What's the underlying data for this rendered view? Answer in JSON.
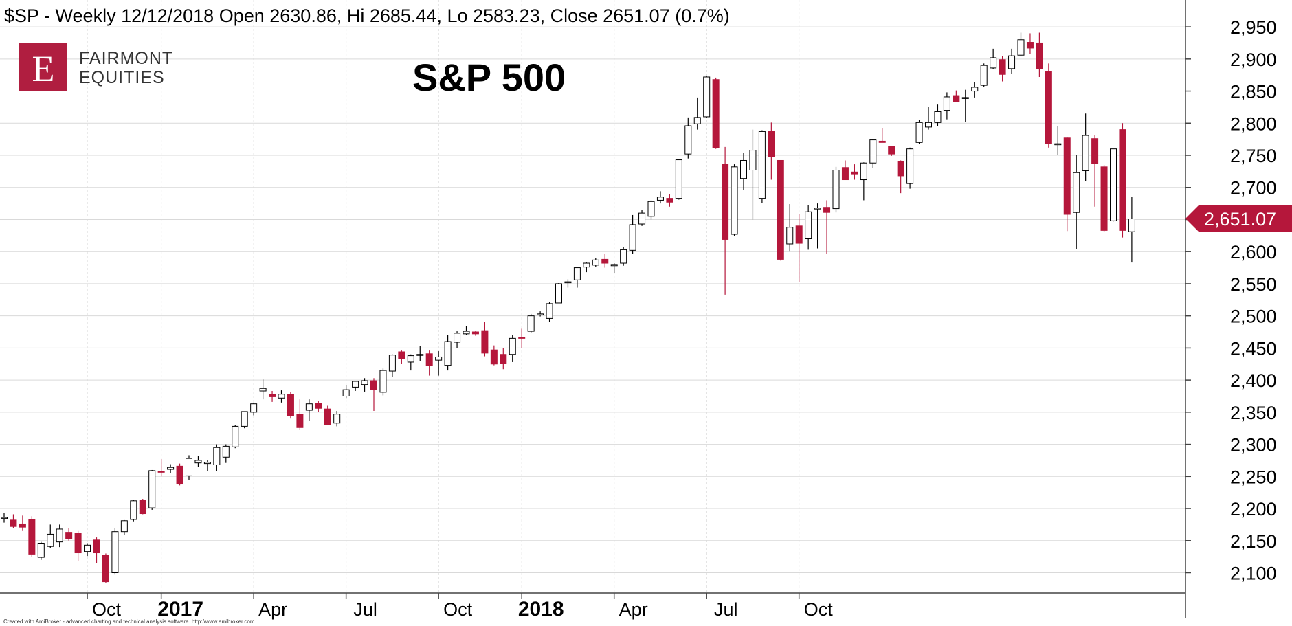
{
  "header": {
    "text": "$SP - Weekly 12/12/2018 Open 2630.86, Hi 2685.44, Lo 2583.23, Close 2651.07 (0.7%)"
  },
  "logo": {
    "letter": "E",
    "line1": "FAIRMONT",
    "line2": "EQUITIES"
  },
  "footer": {
    "text": "Created with AmiBroker - advanced charting and technical analysis software. http://www.amibroker.com"
  },
  "colors": {
    "bear": "#b5173b",
    "bull_fill": "#ffffff",
    "bull_stroke": "#000000",
    "grid": "#d9d9d9",
    "logo_bg": "#b01e40"
  },
  "last_price_tag": "2,651.07",
  "chart_data": {
    "type": "candlestick",
    "title": "S&P 500",
    "xlabel": "",
    "ylabel": "",
    "ylim": [
      2070,
      2970
    ],
    "yticks": [
      2100,
      2150,
      2200,
      2250,
      2300,
      2350,
      2400,
      2450,
      2500,
      2550,
      2600,
      2650,
      2700,
      2750,
      2800,
      2850,
      2900,
      2950
    ],
    "ytick_labels": [
      "2,100",
      "2,150",
      "2,200",
      "2,250",
      "2,300",
      "2,350",
      "2,400",
      "2,450",
      "2,500",
      "2,550",
      "2,600",
      "2,650",
      "2,700",
      "2,750",
      "2,800",
      "2,850",
      "2,900",
      "2,950"
    ],
    "xticks": [
      {
        "index": 9,
        "label": "Oct",
        "bold": false
      },
      {
        "index": 17,
        "label": "2017",
        "bold": true
      },
      {
        "index": 27,
        "label": "Apr",
        "bold": false
      },
      {
        "index": 37,
        "label": "Jul",
        "bold": false
      },
      {
        "index": 47,
        "label": "Oct",
        "bold": false
      },
      {
        "index": 56,
        "label": "2018",
        "bold": true
      },
      {
        "index": 66,
        "label": "Apr",
        "bold": false
      },
      {
        "index": 76,
        "label": "Jul",
        "bold": false
      },
      {
        "index": 86,
        "label": "Oct",
        "bold": false
      }
    ],
    "grid": true,
    "candles": [
      {
        "o": 2186,
        "h": 2193,
        "l": 2178,
        "c": 2186
      },
      {
        "o": 2182,
        "h": 2191,
        "l": 2170,
        "c": 2172
      },
      {
        "o": 2176,
        "h": 2189,
        "l": 2165,
        "c": 2171
      },
      {
        "o": 2183,
        "h": 2188,
        "l": 2125,
        "c": 2129
      },
      {
        "o": 2124,
        "h": 2148,
        "l": 2120,
        "c": 2146
      },
      {
        "o": 2141,
        "h": 2175,
        "l": 2138,
        "c": 2160
      },
      {
        "o": 2148,
        "h": 2175,
        "l": 2140,
        "c": 2168
      },
      {
        "o": 2163,
        "h": 2169,
        "l": 2150,
        "c": 2153
      },
      {
        "o": 2161,
        "h": 2165,
        "l": 2118,
        "c": 2131
      },
      {
        "o": 2133,
        "h": 2146,
        "l": 2126,
        "c": 2143
      },
      {
        "o": 2151,
        "h": 2155,
        "l": 2115,
        "c": 2131
      },
      {
        "o": 2127,
        "h": 2130,
        "l": 2084,
        "c": 2086
      },
      {
        "o": 2100,
        "h": 2170,
        "l": 2097,
        "c": 2164
      },
      {
        "o": 2164,
        "h": 2182,
        "l": 2159,
        "c": 2181
      },
      {
        "o": 2183,
        "h": 2213,
        "l": 2180,
        "c": 2212
      },
      {
        "o": 2213,
        "h": 2215,
        "l": 2191,
        "c": 2192
      },
      {
        "o": 2201,
        "h": 2260,
        "l": 2198,
        "c": 2259
      },
      {
        "o": 2258,
        "h": 2277,
        "l": 2250,
        "c": 2257
      },
      {
        "o": 2261,
        "h": 2269,
        "l": 2255,
        "c": 2264
      },
      {
        "o": 2266,
        "h": 2270,
        "l": 2236,
        "c": 2238
      },
      {
        "o": 2251,
        "h": 2283,
        "l": 2245,
        "c": 2278
      },
      {
        "o": 2271,
        "h": 2282,
        "l": 2265,
        "c": 2275
      },
      {
        "o": 2270,
        "h": 2276,
        "l": 2258,
        "c": 2272
      },
      {
        "o": 2268,
        "h": 2300,
        "l": 2258,
        "c": 2295
      },
      {
        "o": 2280,
        "h": 2300,
        "l": 2271,
        "c": 2297
      },
      {
        "o": 2296,
        "h": 2330,
        "l": 2294,
        "c": 2328
      },
      {
        "o": 2328,
        "h": 2351,
        "l": 2325,
        "c": 2351
      },
      {
        "o": 2350,
        "h": 2365,
        "l": 2345,
        "c": 2363
      },
      {
        "o": 2383,
        "h": 2401,
        "l": 2370,
        "c": 2387
      },
      {
        "o": 2378,
        "h": 2383,
        "l": 2366,
        "c": 2374
      },
      {
        "o": 2372,
        "h": 2384,
        "l": 2365,
        "c": 2378
      },
      {
        "o": 2378,
        "h": 2381,
        "l": 2340,
        "c": 2344
      },
      {
        "o": 2347,
        "h": 2370,
        "l": 2322,
        "c": 2326
      },
      {
        "o": 2353,
        "h": 2370,
        "l": 2336,
        "c": 2363
      },
      {
        "o": 2364,
        "h": 2367,
        "l": 2350,
        "c": 2356
      },
      {
        "o": 2355,
        "h": 2360,
        "l": 2330,
        "c": 2331
      },
      {
        "o": 2333,
        "h": 2352,
        "l": 2328,
        "c": 2347
      },
      {
        "o": 2375,
        "h": 2392,
        "l": 2372,
        "c": 2385
      },
      {
        "o": 2389,
        "h": 2399,
        "l": 2383,
        "c": 2398
      },
      {
        "o": 2393,
        "h": 2403,
        "l": 2382,
        "c": 2399
      },
      {
        "o": 2399,
        "h": 2403,
        "l": 2352,
        "c": 2385
      },
      {
        "o": 2381,
        "h": 2418,
        "l": 2376,
        "c": 2415
      },
      {
        "o": 2414,
        "h": 2440,
        "l": 2405,
        "c": 2439
      },
      {
        "o": 2444,
        "h": 2446,
        "l": 2425,
        "c": 2433
      },
      {
        "o": 2428,
        "h": 2440,
        "l": 2415,
        "c": 2438
      },
      {
        "o": 2439,
        "h": 2453,
        "l": 2430,
        "c": 2440
      },
      {
        "o": 2441,
        "h": 2446,
        "l": 2407,
        "c": 2423
      },
      {
        "o": 2431,
        "h": 2445,
        "l": 2407,
        "c": 2436
      },
      {
        "o": 2423,
        "h": 2470,
        "l": 2415,
        "c": 2460
      },
      {
        "o": 2459,
        "h": 2476,
        "l": 2450,
        "c": 2473
      },
      {
        "o": 2472,
        "h": 2484,
        "l": 2470,
        "c": 2476
      },
      {
        "o": 2475,
        "h": 2477,
        "l": 2469,
        "c": 2472
      },
      {
        "o": 2477,
        "h": 2491,
        "l": 2437,
        "c": 2442
      },
      {
        "o": 2447,
        "h": 2454,
        "l": 2423,
        "c": 2425
      },
      {
        "o": 2440,
        "h": 2450,
        "l": 2417,
        "c": 2426
      },
      {
        "o": 2440,
        "h": 2470,
        "l": 2428,
        "c": 2465
      },
      {
        "o": 2467,
        "h": 2480,
        "l": 2450,
        "c": 2465
      },
      {
        "o": 2476,
        "h": 2503,
        "l": 2474,
        "c": 2500
      },
      {
        "o": 2502,
        "h": 2507,
        "l": 2499,
        "c": 2503
      },
      {
        "o": 2496,
        "h": 2521,
        "l": 2490,
        "c": 2519
      },
      {
        "o": 2520,
        "h": 2551,
        "l": 2520,
        "c": 2550
      },
      {
        "o": 2552,
        "h": 2557,
        "l": 2544,
        "c": 2553
      },
      {
        "o": 2556,
        "h": 2568,
        "l": 2544,
        "c": 2575
      },
      {
        "o": 2576,
        "h": 2583,
        "l": 2568,
        "c": 2582
      },
      {
        "o": 2579,
        "h": 2590,
        "l": 2576,
        "c": 2587
      },
      {
        "o": 2588,
        "h": 2597,
        "l": 2575,
        "c": 2582
      },
      {
        "o": 2578,
        "h": 2582,
        "l": 2566,
        "c": 2580
      },
      {
        "o": 2582,
        "h": 2607,
        "l": 2578,
        "c": 2603
      },
      {
        "o": 2602,
        "h": 2657,
        "l": 2597,
        "c": 2642
      },
      {
        "o": 2643,
        "h": 2665,
        "l": 2640,
        "c": 2660
      },
      {
        "o": 2655,
        "h": 2680,
        "l": 2650,
        "c": 2678
      },
      {
        "o": 2680,
        "h": 2694,
        "l": 2675,
        "c": 2685
      },
      {
        "o": 2683,
        "h": 2689,
        "l": 2670,
        "c": 2677
      },
      {
        "o": 2683,
        "h": 2743,
        "l": 2681,
        "c": 2743
      },
      {
        "o": 2752,
        "h": 2809,
        "l": 2745,
        "c": 2796
      },
      {
        "o": 2799,
        "h": 2840,
        "l": 2790,
        "c": 2809
      },
      {
        "o": 2810,
        "h": 2873,
        "l": 2808,
        "c": 2872
      },
      {
        "o": 2868,
        "h": 2871,
        "l": 2760,
        "c": 2762
      },
      {
        "o": 2736,
        "h": 2763,
        "l": 2533,
        "c": 2619
      },
      {
        "o": 2627,
        "h": 2736,
        "l": 2624,
        "c": 2732
      },
      {
        "o": 2714,
        "h": 2754,
        "l": 2696,
        "c": 2742
      },
      {
        "o": 2727,
        "h": 2790,
        "l": 2650,
        "c": 2758
      },
      {
        "o": 2683,
        "h": 2789,
        "l": 2676,
        "c": 2787
      },
      {
        "o": 2787,
        "h": 2801,
        "l": 2712,
        "c": 2748
      },
      {
        "o": 2742,
        "h": 2742,
        "l": 2586,
        "c": 2588
      },
      {
        "o": 2612,
        "h": 2674,
        "l": 2600,
        "c": 2638
      },
      {
        "o": 2640,
        "h": 2658,
        "l": 2553,
        "c": 2613
      },
      {
        "o": 2620,
        "h": 2672,
        "l": 2603,
        "c": 2662
      },
      {
        "o": 2668,
        "h": 2675,
        "l": 2605,
        "c": 2668
      },
      {
        "o": 2669,
        "h": 2680,
        "l": 2596,
        "c": 2661
      },
      {
        "o": 2667,
        "h": 2732,
        "l": 2661,
        "c": 2727
      },
      {
        "o": 2731,
        "h": 2742,
        "l": 2712,
        "c": 2712
      },
      {
        "o": 2724,
        "h": 2736,
        "l": 2712,
        "c": 2721
      },
      {
        "o": 2712,
        "h": 2739,
        "l": 2680,
        "c": 2738
      },
      {
        "o": 2738,
        "h": 2775,
        "l": 2730,
        "c": 2774
      },
      {
        "o": 2772,
        "h": 2792,
        "l": 2770,
        "c": 2770
      },
      {
        "o": 2764,
        "h": 2765,
        "l": 2749,
        "c": 2752
      },
      {
        "o": 2740,
        "h": 2742,
        "l": 2691,
        "c": 2718
      },
      {
        "o": 2706,
        "h": 2762,
        "l": 2698,
        "c": 2760
      },
      {
        "o": 2770,
        "h": 2805,
        "l": 2768,
        "c": 2801
      },
      {
        "o": 2794,
        "h": 2825,
        "l": 2790,
        "c": 2801
      },
      {
        "o": 2801,
        "h": 2829,
        "l": 2796,
        "c": 2818
      },
      {
        "o": 2820,
        "h": 2848,
        "l": 2806,
        "c": 2841
      },
      {
        "o": 2843,
        "h": 2851,
        "l": 2834,
        "c": 2834
      },
      {
        "o": 2839,
        "h": 2852,
        "l": 2802,
        "c": 2840
      },
      {
        "o": 2850,
        "h": 2864,
        "l": 2840,
        "c": 2856
      },
      {
        "o": 2859,
        "h": 2893,
        "l": 2856,
        "c": 2890
      },
      {
        "o": 2886,
        "h": 2916,
        "l": 2884,
        "c": 2902
      },
      {
        "o": 2899,
        "h": 2905,
        "l": 2865,
        "c": 2876
      },
      {
        "o": 2885,
        "h": 2916,
        "l": 2877,
        "c": 2905
      },
      {
        "o": 2906,
        "h": 2941,
        "l": 2904,
        "c": 2930
      },
      {
        "o": 2926,
        "h": 2940,
        "l": 2908,
        "c": 2917
      },
      {
        "o": 2925,
        "h": 2941,
        "l": 2872,
        "c": 2885
      },
      {
        "o": 2880,
        "h": 2893,
        "l": 2762,
        "c": 2768
      },
      {
        "o": 2767,
        "h": 2795,
        "l": 2750,
        "c": 2768
      },
      {
        "o": 2777,
        "h": 2778,
        "l": 2632,
        "c": 2658
      },
      {
        "o": 2661,
        "h": 2750,
        "l": 2604,
        "c": 2723
      },
      {
        "o": 2726,
        "h": 2815,
        "l": 2710,
        "c": 2781
      },
      {
        "o": 2776,
        "h": 2781,
        "l": 2670,
        "c": 2737
      },
      {
        "o": 2732,
        "h": 2735,
        "l": 2631,
        "c": 2633
      },
      {
        "o": 2648,
        "h": 2760,
        "l": 2647,
        "c": 2760
      },
      {
        "o": 2790,
        "h": 2800,
        "l": 2622,
        "c": 2633
      },
      {
        "o": 2631,
        "h": 2685,
        "l": 2583,
        "c": 2651
      }
    ]
  }
}
